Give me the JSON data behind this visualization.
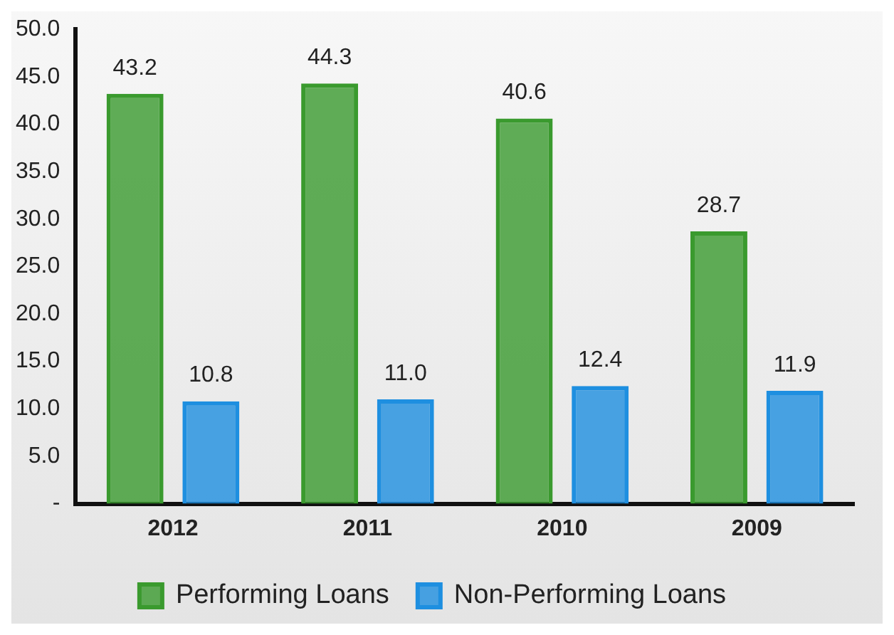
{
  "chart_data": {
    "type": "bar",
    "categories": [
      "2012",
      "2011",
      "2010",
      "2009"
    ],
    "series": [
      {
        "name": "Performing Loans",
        "color": "#3a9a2e",
        "values": [
          43.2,
          44.3,
          40.6,
          28.7
        ],
        "value_labels": [
          "43.2",
          "44.3",
          "40.6",
          "28.7"
        ]
      },
      {
        "name": "Non-Performing Loans",
        "color": "#1e8fe0",
        "values": [
          10.8,
          11.0,
          12.4,
          11.9
        ],
        "value_labels": [
          "10.8",
          "11.0",
          "12.4",
          "11.9"
        ]
      }
    ],
    "ylim": [
      0,
      50
    ],
    "yticks": [
      {
        "value": 0,
        "label": "-"
      },
      {
        "value": 5,
        "label": "5.0"
      },
      {
        "value": 10,
        "label": "10.0"
      },
      {
        "value": 15,
        "label": "15.0"
      },
      {
        "value": 20,
        "label": "20.0"
      },
      {
        "value": 25,
        "label": "25.0"
      },
      {
        "value": 30,
        "label": "30.0"
      },
      {
        "value": 35,
        "label": "35.0"
      },
      {
        "value": 40,
        "label": "40.0"
      },
      {
        "value": 45,
        "label": "45.0"
      },
      {
        "value": 50,
        "label": "50.0"
      }
    ],
    "grid": false,
    "legend": "bottom"
  }
}
